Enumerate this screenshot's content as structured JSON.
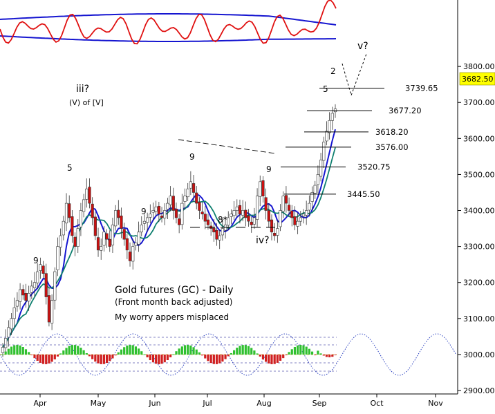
{
  "chart_data": {
    "type": "candlestick",
    "title": "Gold futures (GC) - Daily",
    "subtitle": "(Front month back adjusted)",
    "note": "My worry appers misplaced",
    "ylim": [
      2900,
      3950
    ],
    "y_ticks": [
      "2900.00",
      "3000.00",
      "3100.00",
      "3200.00",
      "3300.00",
      "3400.00",
      "3500.00",
      "3600.00",
      "3700.00",
      "3800.00"
    ],
    "x_labels": [
      "Apr",
      "May",
      "Jun",
      "Jul",
      "Aug",
      "Sep",
      "Oct",
      "Nov"
    ],
    "last_price": "3682.50",
    "levels": [
      {
        "label": "3739.65",
        "value": 3739.65
      },
      {
        "label": "3677.20",
        "value": 3677.2
      },
      {
        "label": "3618.20",
        "value": 3618.2
      },
      {
        "label": "3576.00",
        "value": 3576.0
      },
      {
        "label": "3520.75",
        "value": 3520.75
      },
      {
        "label": "3445.50",
        "value": 3445.5
      }
    ],
    "wave_labels": {
      "iii": "iii?",
      "iii_sub": "(V) of [V]",
      "iv": "iv?",
      "v": "v?"
    },
    "count_labels": [
      {
        "text": "9",
        "color": "#e00000"
      },
      {
        "text": "5",
        "color": "#a08000"
      },
      {
        "text": "9",
        "color": "#e00000"
      },
      {
        "text": "9",
        "color": "#e00000"
      },
      {
        "text": "9",
        "color": "#2020c0"
      },
      {
        "text": "8*",
        "color": "#2020c0"
      },
      {
        "text": "5",
        "color": "#a08000"
      },
      {
        "text": "2",
        "color": "#e00000"
      }
    ],
    "daily_closes": [
      3020,
      3045,
      3075,
      3100,
      3130,
      3150,
      3180,
      3165,
      3150,
      3170,
      3190,
      3200,
      3230,
      3250,
      3225,
      3160,
      3090,
      3150,
      3230,
      3300,
      3330,
      3370,
      3420,
      3380,
      3330,
      3300,
      3350,
      3400,
      3430,
      3460,
      3420,
      3380,
      3330,
      3290,
      3300,
      3340,
      3320,
      3300,
      3360,
      3400,
      3380,
      3350,
      3320,
      3290,
      3260,
      3300,
      3310,
      3340,
      3360,
      3370,
      3380,
      3390,
      3400,
      3410,
      3390,
      3380,
      3400,
      3420,
      3440,
      3400,
      3380,
      3360,
      3420,
      3440,
      3460,
      3480,
      3450,
      3420,
      3400,
      3390,
      3370,
      3360,
      3350,
      3340,
      3320,
      3330,
      3350,
      3360,
      3380,
      3390,
      3400,
      3410,
      3390,
      3400,
      3380,
      3370,
      3360,
      3380,
      3440,
      3480,
      3440,
      3400,
      3370,
      3340,
      3330,
      3350,
      3400,
      3440,
      3420,
      3400,
      3380,
      3360,
      3370,
      3380,
      3390,
      3400,
      3420,
      3450,
      3470,
      3500,
      3540,
      3590,
      3620,
      3650,
      3670,
      3682
    ]
  }
}
